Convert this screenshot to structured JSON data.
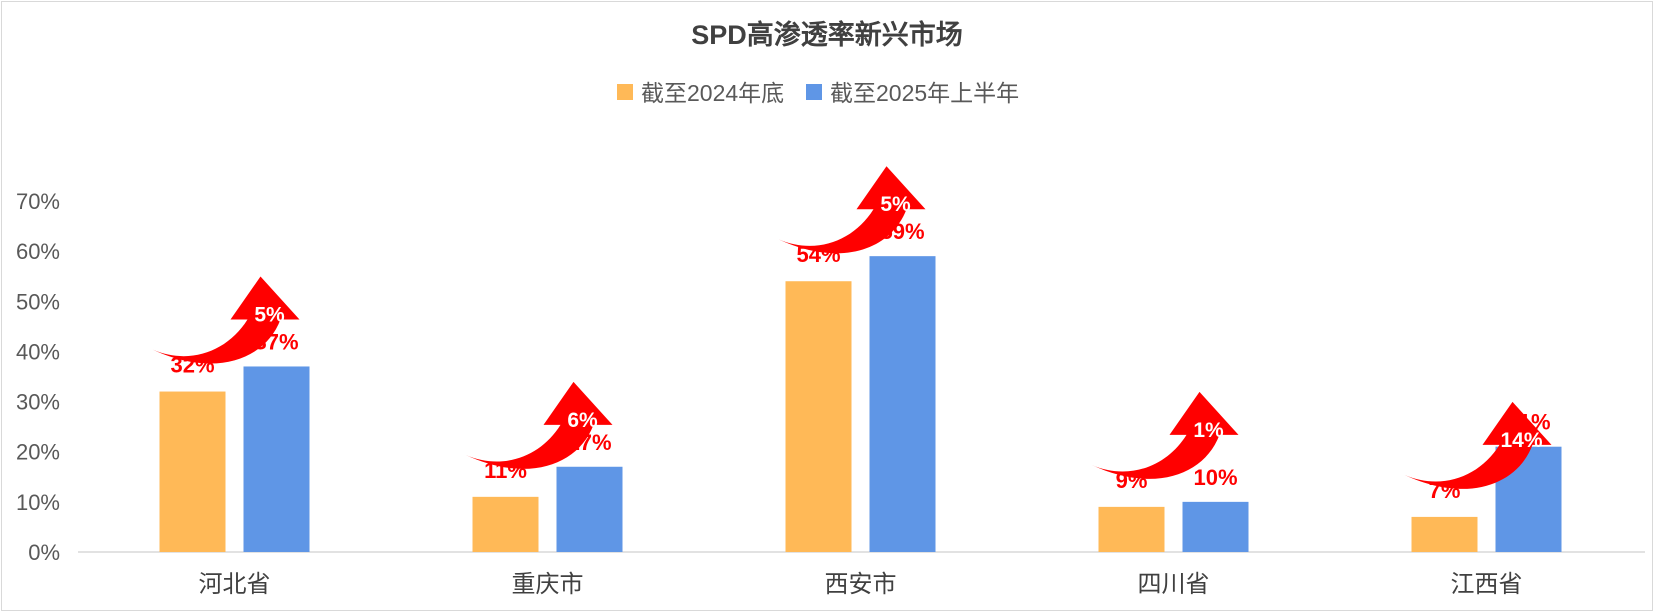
{
  "chart_data": {
    "type": "bar",
    "title": "SPD高渗透率新兴市场",
    "categories": [
      "河北省",
      "重庆市",
      "西安市",
      "四川省",
      "江西省"
    ],
    "series": [
      {
        "name": "截至2024年底",
        "values": [
          32,
          11,
          54,
          9,
          7
        ],
        "labels": [
          "32%",
          "11%",
          "54%",
          "9%",
          "7%"
        ],
        "color": "#ffb957"
      },
      {
        "name": "截至2025年上半年",
        "values": [
          37,
          17,
          59,
          10,
          21
        ],
        "labels": [
          "37%",
          "17%",
          "59%",
          "10%",
          "21%"
        ],
        "color": "#5f96e6"
      }
    ],
    "increases": [
      "5%",
      "6%",
      "5%",
      "1%",
      "14%"
    ],
    "ylim": [
      0,
      70
    ],
    "yticks": [
      "0%",
      "10%",
      "20%",
      "30%",
      "40%",
      "50%",
      "60%",
      "70%"
    ],
    "legend": "top-center",
    "grid": false,
    "label_color": "#ff0000",
    "arrow_color": "#ff0000"
  }
}
